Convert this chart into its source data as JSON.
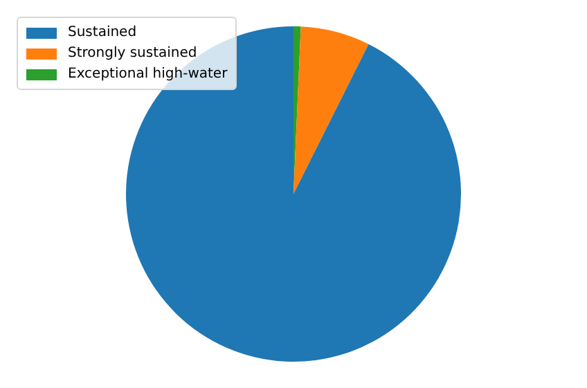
{
  "chart_data": {
    "type": "pie",
    "categories": [
      "Sustained",
      "Strongly sustained",
      "Exceptional high-water"
    ],
    "values": [
      92.6,
      6.7,
      0.7
    ],
    "colors": [
      "#1f77b4",
      "#ff7f0e",
      "#2ca02c"
    ],
    "legend": "top left"
  }
}
